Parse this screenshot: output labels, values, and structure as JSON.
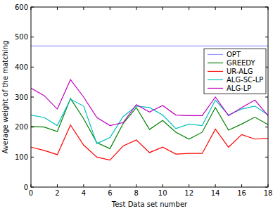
{
  "chart_data": {
    "type": "line",
    "x": [
      0,
      1,
      2,
      3,
      4,
      5,
      6,
      7,
      8,
      9,
      10,
      11,
      12,
      13,
      14,
      15,
      16,
      17,
      18
    ],
    "x_label": "Test Data set number",
    "y_label": "Average weight of the matching",
    "xlim": [
      0,
      18
    ],
    "xticks": [
      0,
      2,
      4,
      6,
      8,
      10,
      12,
      14,
      16,
      18
    ],
    "ylim": [
      0,
      600
    ],
    "yticks": [
      0,
      100,
      200,
      300,
      400,
      500,
      600
    ],
    "legend": "upper right",
    "series": [
      {
        "name": "OPT",
        "color": "#9999ff",
        "values": [
          470,
          470,
          470,
          470,
          470,
          470,
          470,
          470,
          470,
          470,
          470,
          470,
          470,
          470,
          470,
          470,
          470,
          470,
          470
        ]
      },
      {
        "name": "GREEDY",
        "color": "#008000",
        "values": [
          202,
          200,
          185,
          295,
          228,
          148,
          128,
          212,
          265,
          192,
          222,
          183,
          160,
          183,
          265,
          190,
          210,
          233,
          208
        ]
      },
      {
        "name": "UR-ALG",
        "color": "#ff0000",
        "values": [
          133,
          122,
          108,
          207,
          140,
          100,
          90,
          137,
          157,
          115,
          133,
          110,
          112,
          112,
          193,
          133,
          175,
          160,
          162
        ]
      },
      {
        "name": "ALG-SC-LP",
        "color": "#00bfbf",
        "values": [
          240,
          232,
          205,
          293,
          270,
          145,
          165,
          235,
          270,
          265,
          240,
          195,
          210,
          205,
          290,
          240,
          260,
          270,
          240
        ]
      },
      {
        "name": "ALG-LP",
        "color": "#bf00bf",
        "values": [
          330,
          305,
          260,
          358,
          300,
          232,
          205,
          215,
          275,
          250,
          272,
          240,
          238,
          238,
          300,
          238,
          265,
          290,
          238
        ]
      }
    ]
  }
}
